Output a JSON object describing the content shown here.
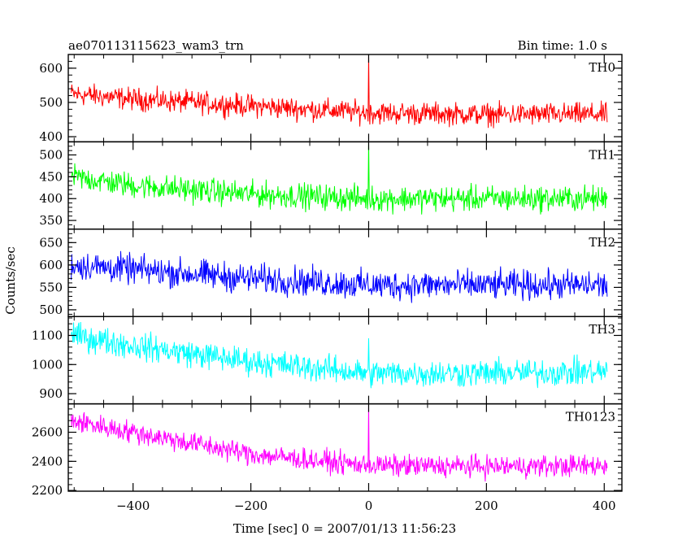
{
  "header": {
    "title": "ae070113115623_wam3_trn",
    "bin_time": "Bin time: 1.0 s"
  },
  "chart_data": {
    "type": "line",
    "title": "ae070113115623_wam3_trn",
    "subtitle": "Bin time: 1.0 s",
    "xlabel": "Time [sec] 0 = 2007/01/13 11:56:23",
    "ylabel": "Counts/sec",
    "xlim": [
      -510,
      430
    ],
    "x_ticks": [
      -400,
      -200,
      0,
      200,
      400
    ],
    "x_tick_labels": [
      "−400",
      "−200",
      "0",
      "200",
      "400"
    ],
    "bin_time_sec": 1.0,
    "x_range_data": [
      -505,
      405
    ],
    "grid": false,
    "legend": "none",
    "panels": [
      {
        "name": "TH0",
        "color": "#ff0000",
        "ylim": [
          385,
          640
        ],
        "y_ticks": [
          400,
          500,
          600
        ],
        "trend": {
          "x": [
            -505,
            -400,
            -200,
            0,
            200,
            400
          ],
          "y": [
            525,
            510,
            490,
            470,
            465,
            465
          ]
        },
        "noise_amplitude": 28,
        "spike": {
          "x": 0,
          "y": 640
        }
      },
      {
        "name": "TH1",
        "color": "#00ff00",
        "ylim": [
          330,
          530
        ],
        "y_ticks": [
          350,
          400,
          450,
          500
        ],
        "trend": {
          "x": [
            -505,
            -400,
            -200,
            0,
            200,
            400
          ],
          "y": [
            450,
            430,
            410,
            400,
            400,
            400
          ]
        },
        "noise_amplitude": 25,
        "spike": {
          "x": 0,
          "y": 530
        }
      },
      {
        "name": "TH2",
        "color": "#0000ff",
        "ylim": [
          485,
          680
        ],
        "y_ticks": [
          500,
          550,
          600,
          650
        ],
        "trend": {
          "x": [
            -505,
            -400,
            -200,
            0,
            200,
            400
          ],
          "y": [
            600,
            590,
            570,
            555,
            555,
            555
          ]
        },
        "noise_amplitude": 28,
        "spike": null
      },
      {
        "name": "TH3",
        "color": "#00ffff",
        "ylim": [
          865,
          1165
        ],
        "y_ticks": [
          900,
          1000,
          1100
        ],
        "trend": {
          "x": [
            -505,
            -400,
            -200,
            0,
            200,
            400
          ],
          "y": [
            1100,
            1065,
            1010,
            970,
            970,
            975
          ]
        },
        "noise_amplitude": 40,
        "spike": {
          "x": 0,
          "y": 1090
        }
      },
      {
        "name": "TH0123",
        "color": "#ff00ff",
        "ylim": [
          2195,
          2795
        ],
        "y_ticks": [
          2200,
          2400,
          2600
        ],
        "trend": {
          "x": [
            -505,
            -400,
            -200,
            0,
            200,
            400
          ],
          "y": [
            2680,
            2600,
            2450,
            2370,
            2365,
            2370
          ]
        },
        "noise_amplitude": 65,
        "spike": {
          "x": 0,
          "y": 2795
        }
      }
    ]
  }
}
